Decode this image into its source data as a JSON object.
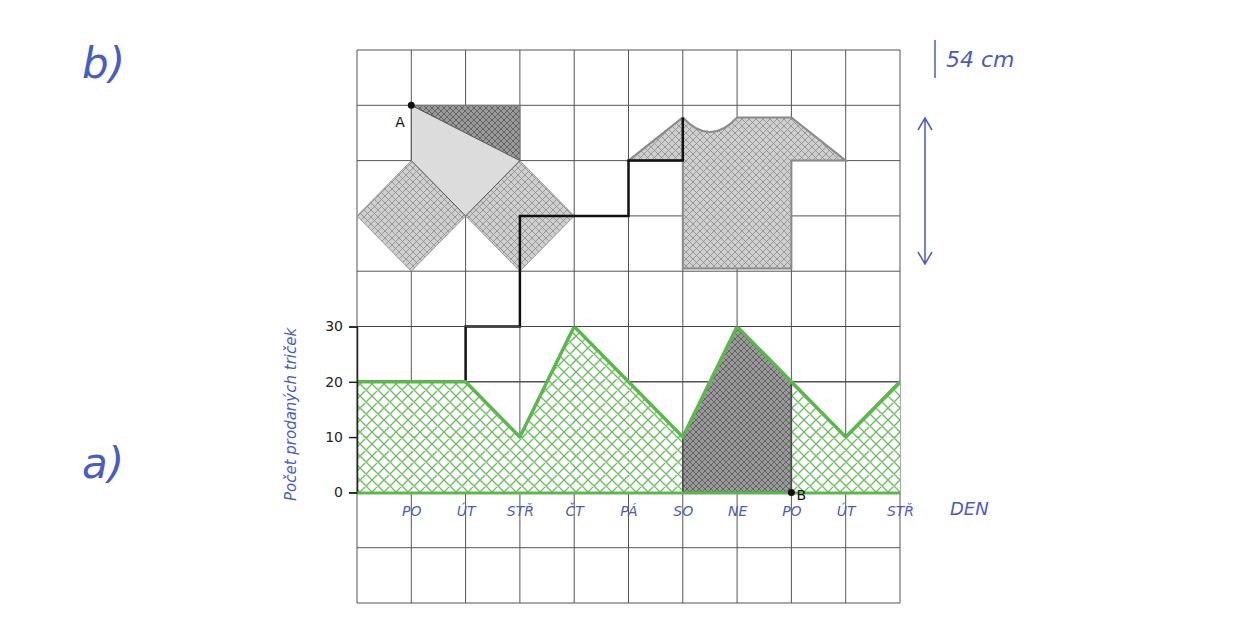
{
  "chart_data": {
    "type": "area",
    "categories": [
      null,
      "PO",
      "ÚT",
      "STŘ",
      "ČT",
      "PÁ",
      "SO",
      "NE",
      "PO",
      "ÚT",
      "STŘ"
    ],
    "values": [
      20,
      20,
      20,
      10,
      30,
      20,
      10,
      30,
      20,
      10,
      20
    ],
    "color": "#5cb84e",
    "ylim": [
      0,
      30
    ],
    "yticks": [
      0,
      10,
      20,
      30
    ],
    "grid": true,
    "x_label": "DEN",
    "y_label": "Počet prodaných triček",
    "annotations": [
      "b)",
      "a)",
      "54 cm",
      "A",
      "B"
    ]
  }
}
